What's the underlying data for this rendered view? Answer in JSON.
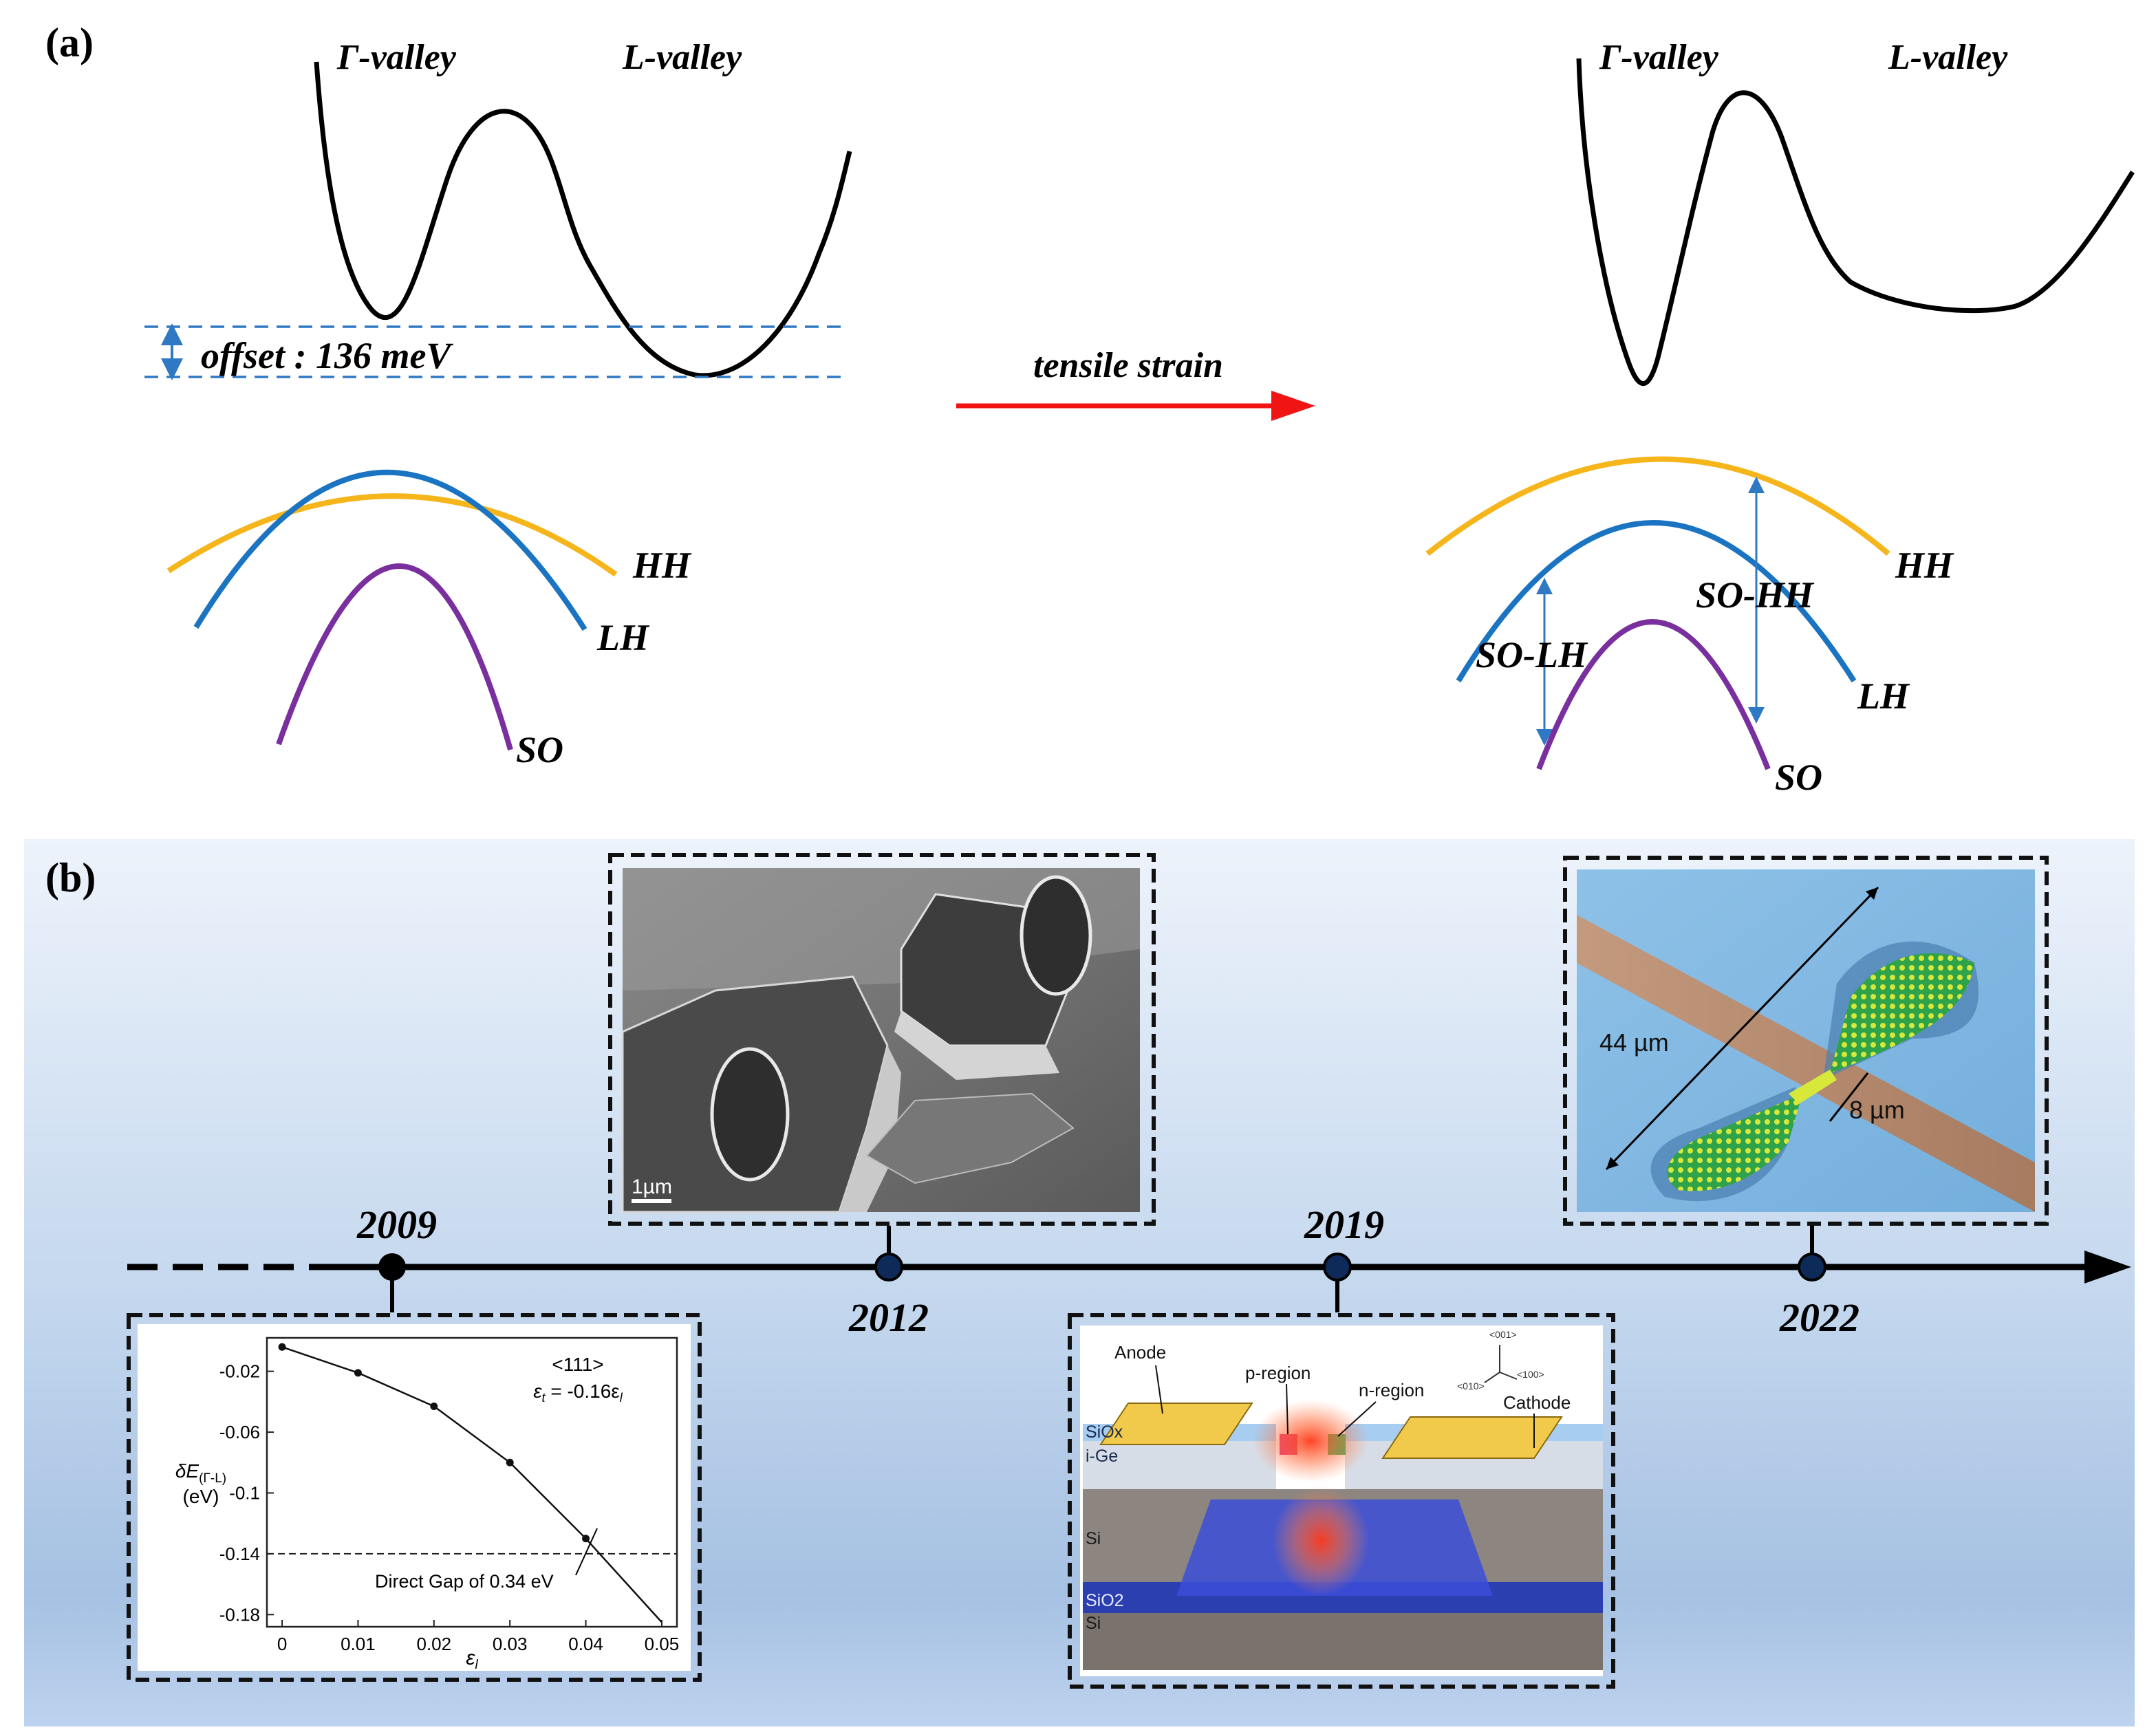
{
  "panel_a": {
    "label": "(a)",
    "before": {
      "gamma_valley": "Γ-valley",
      "l_valley": "L-valley",
      "offset": "offset : 136 meV",
      "hh": "HH",
      "lh": "LH",
      "so": "SO"
    },
    "arrow": {
      "label": "tensile strain"
    },
    "after": {
      "gamma_valley": "Γ-valley",
      "l_valley": "L-valley",
      "hh": "HH",
      "lh": "LH",
      "so": "SO",
      "so_hh": "SO-HH",
      "so_lh": "SO-LH"
    }
  },
  "panel_b": {
    "label": "(b)",
    "years": [
      "2009",
      "2012",
      "2019",
      "2022"
    ],
    "sem_image": {
      "scale_bar": "1µm"
    },
    "bowtie_image": {
      "length": "44 µm",
      "width": "8 µm"
    },
    "device_image": {
      "anode": "Anode",
      "p_region": "p-region",
      "n_region": "n-region",
      "cathode": "Cathode",
      "siox": "SiOx",
      "ige": "i-Ge",
      "si_top": "Si",
      "sio2": "SiO2",
      "si_bottom": "Si",
      "axes": [
        "<001>",
        "<010>",
        "<100>"
      ]
    }
  },
  "chart_data": {
    "type": "line",
    "x": [
      0,
      0.01,
      0.02,
      0.03,
      0.04,
      0.05
    ],
    "y": [
      -0.004,
      -0.021,
      -0.043,
      -0.08,
      -0.13,
      -0.185
    ],
    "markers_x": [
      0,
      0.01,
      0.02,
      0.03,
      0.04
    ],
    "xlim": [
      -0.002,
      0.052
    ],
    "ylim": [
      -0.188,
      0.002
    ],
    "xticks": [
      0,
      0.01,
      0.02,
      0.03,
      0.04,
      0.05
    ],
    "xtick_labels": [
      "0",
      "0.01",
      "0.02",
      "0.03",
      "0.04",
      "0.05"
    ],
    "yticks": [
      -0.02,
      -0.06,
      -0.1,
      -0.14,
      -0.18
    ],
    "ytick_labels": [
      "-0.02",
      "-0.06",
      "-0.1",
      "-0.14",
      "-0.18"
    ],
    "xlabel": "ε",
    "xlabel_sub": "l",
    "ylabel_main": "δE",
    "ylabel_sub": "(Γ-L)",
    "ylabel_unit": "(eV)",
    "direction": "<111>",
    "relation_prefix": "ε",
    "relation_sub": "t",
    "relation_mid": " = -0.16ε",
    "relation_sub2": "l",
    "hline": -0.14,
    "annotation": "Direct Gap of 0.34 eV"
  }
}
